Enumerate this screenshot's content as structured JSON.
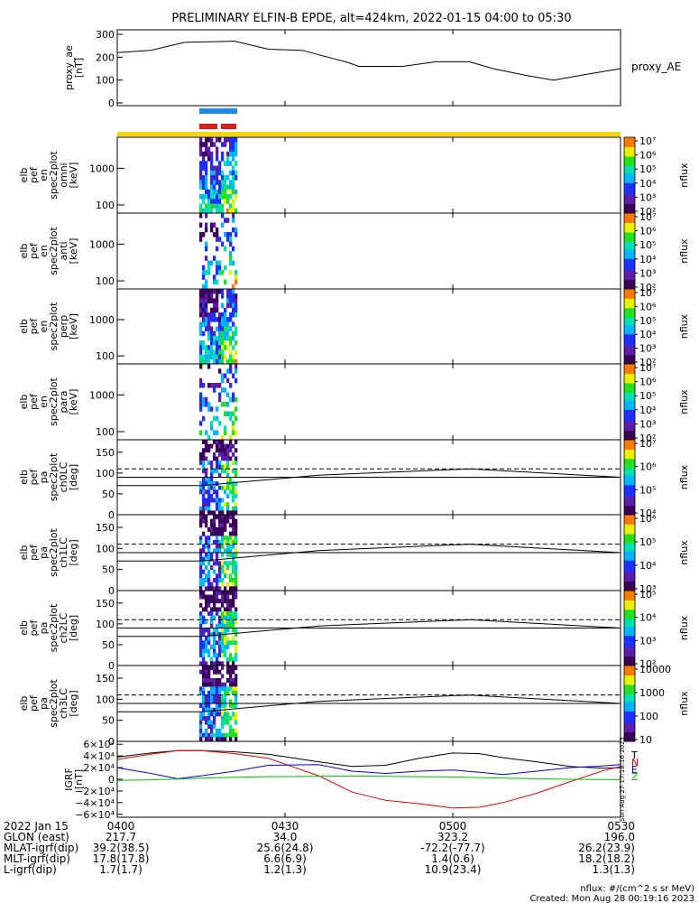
{
  "title": "PRELIMINARY ELFIN-B EPDE, alt=424km, 2022-01-15 04:00 to 05:30",
  "colors": {
    "bar_top": "#1e88e5",
    "bar_bottom": "#e31a1c",
    "science_zone": "#f5d800",
    "igrf_total": "#000000",
    "igrf_n": "#e00000",
    "igrf_e": "#0000e0",
    "igrf_z": "#00c000"
  },
  "chart_data": [
    {
      "type": "line",
      "name": "proxy_ae",
      "ylabel_lines": [
        "proxy_ae",
        "[nT]"
      ],
      "legend": "proxy_AE",
      "ylim": [
        0,
        300
      ],
      "yticks": [
        "0",
        "100",
        "200",
        "300"
      ],
      "x_hours": [
        4.0,
        4.1,
        4.2,
        4.35,
        4.45,
        4.55,
        4.68,
        4.72,
        4.85,
        4.95,
        5.05,
        5.12,
        5.22,
        5.3,
        5.4,
        5.5
      ],
      "y": [
        220,
        230,
        265,
        270,
        235,
        230,
        180,
        160,
        160,
        180,
        180,
        150,
        120,
        100,
        125,
        150
      ]
    },
    {
      "type": "heatmap",
      "name": "omni",
      "ylabel_lines": [
        "elb",
        "pef",
        "en",
        "spec2plot",
        "omni",
        "[keV]"
      ],
      "ylim_log": [
        60,
        7000
      ],
      "yticks": [
        "100",
        "1000"
      ],
      "zlabel": "nflux",
      "zticks": [
        "10²",
        "10³",
        "10⁴",
        "10⁵",
        "10⁶",
        "10⁷"
      ]
    },
    {
      "type": "heatmap",
      "name": "anti",
      "ylabel_lines": [
        "elb",
        "pef",
        "en",
        "spec2plot",
        "anti",
        "[keV]"
      ],
      "ylim_log": [
        60,
        7000
      ],
      "yticks": [
        "100",
        "1000"
      ],
      "zlabel": "nflux",
      "zticks": [
        "10²",
        "10³",
        "10⁴",
        "10⁵",
        "10⁶",
        "10⁷"
      ]
    },
    {
      "type": "heatmap",
      "name": "perp",
      "ylabel_lines": [
        "elb",
        "pef",
        "en",
        "spec2plot",
        "perp",
        "[keV]"
      ],
      "ylim_log": [
        60,
        7000
      ],
      "yticks": [
        "100",
        "1000"
      ],
      "zlabel": "nflux",
      "zticks": [
        "10²",
        "10³",
        "10⁴",
        "10⁵",
        "10⁶",
        "10⁷"
      ]
    },
    {
      "type": "heatmap",
      "name": "para",
      "ylabel_lines": [
        "elb",
        "pef",
        "en",
        "spec2plot",
        "para",
        "[keV]"
      ],
      "ylim_log": [
        60,
        7000
      ],
      "yticks": [
        "100",
        "1000"
      ],
      "zlabel": "nflux",
      "zticks": [
        "10²",
        "10³",
        "10⁴",
        "10⁵",
        "10⁶",
        "10⁷"
      ]
    },
    {
      "type": "heatmap",
      "name": "ch0LC",
      "ylabel_lines": [
        "elb",
        "pef",
        "pa",
        "spec2plot",
        "ch0LC",
        "[deg]"
      ],
      "ylim": [
        0,
        180
      ],
      "yticks": [
        "0",
        "50",
        "100",
        "150"
      ],
      "zlabel": "nflux",
      "zticks": [
        "10⁴",
        "10⁵",
        "10⁶",
        "10⁷"
      ]
    },
    {
      "type": "heatmap",
      "name": "ch1LC",
      "ylabel_lines": [
        "elb",
        "pef",
        "pa",
        "spec2plot",
        "ch1LC",
        "[deg]"
      ],
      "ylim": [
        0,
        180
      ],
      "yticks": [
        "0",
        "50",
        "100",
        "150"
      ],
      "zlabel": "nflux",
      "zticks": [
        "10³",
        "10⁴",
        "10⁵",
        "10⁶"
      ]
    },
    {
      "type": "heatmap",
      "name": "ch2LC",
      "ylabel_lines": [
        "elb",
        "pef",
        "pa",
        "spec2plot",
        "ch2LC",
        "[deg]"
      ],
      "ylim": [
        0,
        180
      ],
      "yticks": [
        "0",
        "50",
        "100",
        "150"
      ],
      "zlabel": "nflux",
      "zticks": [
        "10²",
        "10³",
        "10⁴",
        "10⁵"
      ]
    },
    {
      "type": "heatmap",
      "name": "ch3LC",
      "ylabel_lines": [
        "elb",
        "pef",
        "pa",
        "spec2plot",
        "ch3LC",
        "[deg]"
      ],
      "ylim": [
        0,
        180
      ],
      "yticks": [
        "0",
        "50",
        "100",
        "150"
      ],
      "zlabel": "nflux",
      "zticks": [
        "10",
        "100",
        "1000",
        "10000"
      ]
    },
    {
      "type": "line",
      "name": "igrf",
      "ylabel_lines": [
        "IGRF",
        "[nT]"
      ],
      "ylim": [
        -65000,
        65000
      ],
      "yticks": [
        "−6×10⁴",
        "−4×10⁴",
        "−2×10⁴",
        "0",
        "2×10⁴",
        "4×10⁴",
        "6×10⁴"
      ],
      "ytick_values": [
        -60000,
        -40000,
        -20000,
        0,
        20000,
        40000,
        60000
      ],
      "legend": [
        "T",
        "N",
        "E",
        "Z"
      ],
      "x_hours": [
        4.0,
        4.1,
        4.18,
        4.25,
        4.35,
        4.45,
        4.6,
        4.7,
        4.8,
        4.9,
        5.0,
        5.08,
        5.15,
        5.25,
        5.35,
        5.45,
        5.5
      ],
      "series": [
        {
          "name": "T",
          "values": [
            38000,
            45000,
            49000,
            49000,
            47000,
            43000,
            30000,
            22000,
            24000,
            36000,
            45000,
            44000,
            37000,
            30000,
            22000,
            19000,
            20000
          ]
        },
        {
          "name": "N",
          "values": [
            34000,
            43000,
            49000,
            49000,
            44000,
            36000,
            6000,
            -22000,
            -36000,
            -42000,
            -49000,
            -48000,
            -40000,
            -24000,
            -4000,
            15000,
            22000
          ]
        },
        {
          "name": "E",
          "values": [
            20000,
            10000,
            1000,
            6000,
            14000,
            24000,
            25000,
            14000,
            10000,
            14000,
            16000,
            12000,
            8000,
            14000,
            20000,
            23000,
            25000
          ]
        },
        {
          "name": "Z",
          "values": [
            -2000,
            -1000,
            500,
            2000,
            3500,
            4500,
            5000,
            5500,
            5000,
            4500,
            4000,
            3000,
            2000,
            1000,
            0,
            -500,
            -800
          ]
        }
      ]
    }
  ],
  "x_axis": {
    "ticks": [
      "0400",
      "0430",
      "0500",
      "0530"
    ],
    "tick_hours": [
      4.0,
      4.5,
      5.0,
      5.5
    ]
  },
  "ephemeris": {
    "rows": [
      {
        "label": "2022 Jan 15",
        "values": [
          "0400",
          "0430",
          "0500",
          "0530"
        ]
      },
      {
        "label": "GLON (east)",
        "values": [
          "217.7",
          "34.0",
          "323.2",
          "196.0"
        ]
      },
      {
        "label": "MLAT-igrf(dip)",
        "values": [
          "39.2(38.5)",
          "25.6(24.8)",
          "-72.2(-77.7)",
          "26.2(23.9)"
        ]
      },
      {
        "label": "MLT-igrf(dip)",
        "values": [
          "17.8(17.8)",
          "6.6(6.9)",
          "1.4(0.6)",
          "18.2(18.2)"
        ]
      },
      {
        "label": "L-igrf(dip)",
        "values": [
          "1.7(1.7)",
          "1.2(1.3)",
          "10.9(23.4)",
          "1.3(1.3)"
        ]
      }
    ]
  },
  "footer": {
    "units": "nflux: #/(cm^2 s sr MeV)",
    "created": "Created: Mon Aug 28 00:19:16 2023",
    "sidebar_stamp": "Sun Aug 27 17:18:16 2023"
  }
}
